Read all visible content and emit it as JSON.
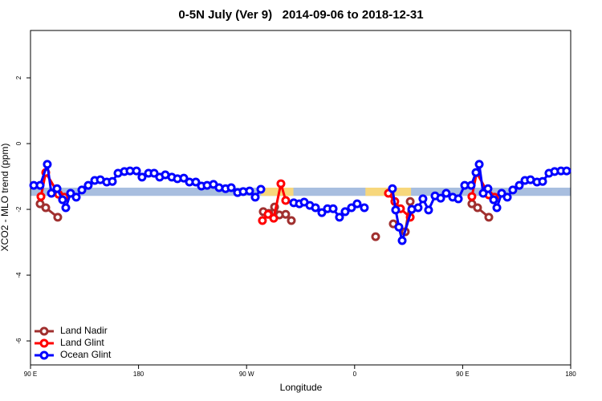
{
  "chart_data": {
    "type": "line",
    "title": "0-5N July (Ver 9)   2014-09-06 to 2018-12-31",
    "xlabel": "Longitude",
    "ylabel": "XCO2 - MLO trend (ppm)",
    "xlim": [
      90,
      540
    ],
    "xticks": [
      {
        "value": 90,
        "label": "90 E"
      },
      180,
      {
        "value": 270,
        "label": "90 W"
      },
      {
        "value": 360,
        "label": "0"
      },
      {
        "value": 450,
        "label": "90 E"
      },
      {
        "value": 540,
        "label": "180"
      }
    ],
    "ylim": [
      -6.73,
      3.44
    ],
    "yticks": [
      -6,
      -4,
      -2,
      0,
      2
    ],
    "legend": "bottom-left",
    "bands": [
      {
        "xlim": [
          90,
          540
        ],
        "ylim": [
          -1.34,
          -1.59
        ],
        "color": "#a8bedf"
      },
      {
        "xlim": [
          282,
          309
        ],
        "ylim": [
          -1.34,
          -1.59
        ],
        "color": "#f7d77c"
      },
      {
        "xlim": [
          369,
          407
        ],
        "ylim": [
          -1.34,
          -1.59
        ],
        "color": "#f7d77c"
      }
    ],
    "series": [
      {
        "name": "Land Nadir",
        "color": "#a0302f",
        "x": [
          98.0,
          102.7,
          112.7,
          null,
          283.9,
          288.6,
          293.3,
          297.3,
          302.6,
          307.3,
          null,
          377.5,
          null,
          392.2,
          402.2,
          406.3,
          null,
          457.7,
          462.4,
          471.8
        ],
        "values": [
          -1.83,
          -1.95,
          -2.24,
          null,
          -2.07,
          -2.12,
          -1.93,
          -2.17,
          -2.15,
          -2.34,
          null,
          -2.83,
          null,
          -2.44,
          -2.68,
          -1.76,
          null,
          -1.83,
          -1.95,
          -2.24
        ]
      },
      {
        "name": "Land Glint",
        "color": "#ff0000",
        "x": [
          98.7,
          102.7,
          113.4,
          118.1,
          null,
          283.2,
          287.9,
          292.6,
          298.6,
          302.6,
          null,
          388.2,
          393.5,
          398.2,
          406.3,
          null,
          457.7,
          461.7,
          471.8,
          476.5
        ],
        "values": [
          -1.61,
          -0.88,
          -1.54,
          -1.63,
          null,
          -2.34,
          -2.15,
          -2.27,
          -1.22,
          -1.73,
          null,
          -1.51,
          -1.76,
          -1.98,
          -2.24,
          null,
          -1.61,
          -0.88,
          -1.56,
          -1.63
        ]
      },
      {
        "name": "Ocean Glint",
        "color": "#0000ff",
        "x": [
          92.7,
          98.0,
          104.0,
          107.4,
          112.1,
          116.7,
          119.4,
          123.4,
          128.1,
          132.8,
          138.1,
          143.5,
          148.2,
          153.5,
          158.2,
          162.9,
          168.2,
          172.9,
          178.3,
          182.9,
          188.3,
          193.0,
          197.6,
          202.3,
          207.7,
          212.4,
          217.7,
          222.4,
          227.7,
          232.4,
          237.1,
          242.4,
          247.1,
          252.5,
          257.2,
          262.5,
          267.2,
          272.5,
          277.2,
          281.9,
          null,
          309.3,
          314.0,
          318.0,
          322.7,
          327.4,
          332.7,
          337.4,
          342.1,
          347.4,
          352.1,
          357.4,
          362.1,
          368.1,
          null,
          391.5,
          394.2,
          396.9,
          399.6,
          407.6,
          412.9,
          416.9,
          421.6,
          427.0,
          431.7,
          436.3,
          441.7,
          446.4,
          451.7,
          457.1,
          461.1,
          463.8,
          467.1,
          471.1,
          475.8,
          478.5,
          482.5,
          487.2,
          491.8,
          497.2,
          501.9,
          506.5,
          511.9,
          516.6,
          521.9,
          526.6,
          531.9,
          536.6
        ],
        "values": [
          -1.27,
          -1.27,
          -0.63,
          -1.51,
          -1.37,
          -1.71,
          -1.95,
          -1.51,
          -1.63,
          -1.41,
          -1.27,
          -1.12,
          -1.1,
          -1.17,
          -1.15,
          -0.9,
          -0.85,
          -0.83,
          -0.83,
          -1.02,
          -0.9,
          -0.9,
          -1.02,
          -0.95,
          -1.02,
          -1.07,
          -1.05,
          -1.17,
          -1.17,
          -1.29,
          -1.27,
          -1.24,
          -1.34,
          -1.37,
          -1.34,
          -1.49,
          -1.46,
          -1.44,
          -1.63,
          -1.39,
          null,
          -1.8,
          -1.83,
          -1.78,
          -1.88,
          -1.95,
          -2.1,
          -1.98,
          -1.98,
          -2.24,
          -2.07,
          -1.95,
          -1.83,
          -1.95,
          null,
          -1.37,
          -2.02,
          -2.54,
          -2.95,
          -2.0,
          -1.95,
          -1.68,
          -2.02,
          -1.59,
          -1.66,
          -1.51,
          -1.63,
          -1.68,
          -1.27,
          -1.27,
          -0.88,
          -0.63,
          -1.51,
          -1.37,
          -1.71,
          -1.95,
          -1.51,
          -1.63,
          -1.41,
          -1.27,
          -1.12,
          -1.1,
          -1.17,
          -1.15,
          -0.9,
          -0.85,
          -0.83,
          -0.83
        ]
      }
    ]
  }
}
